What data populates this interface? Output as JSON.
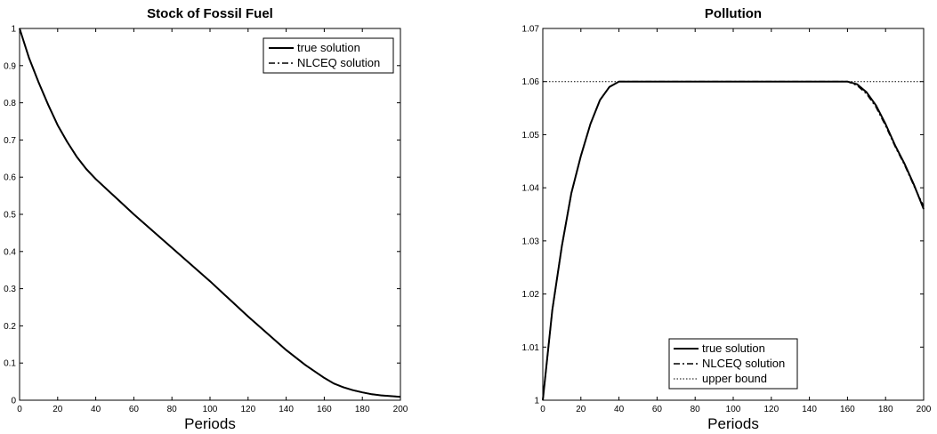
{
  "chart_data": [
    {
      "type": "line",
      "title": "Stock of Fossil Fuel",
      "xlabel": "Periods",
      "ylabel": "",
      "xlim": [
        0,
        200
      ],
      "ylim": [
        0,
        1
      ],
      "xticks": [
        0,
        20,
        40,
        60,
        80,
        100,
        120,
        140,
        160,
        180,
        200
      ],
      "yticks": [
        0,
        0.1,
        0.2,
        0.3,
        0.4,
        0.5,
        0.6,
        0.7,
        0.8,
        0.9,
        1
      ],
      "ytick_labels": [
        "0",
        "0.1",
        "0.2",
        "0.3",
        "0.4",
        "0.5",
        "0.6",
        "0.7",
        "0.8",
        "0.9",
        "1"
      ],
      "legend_position": "top-right",
      "grid": false,
      "series": [
        {
          "name": "true solution",
          "style": "solid",
          "x": [
            0,
            5,
            10,
            15,
            20,
            25,
            30,
            35,
            40,
            60,
            80,
            100,
            120,
            140,
            150,
            160,
            165,
            170,
            175,
            180,
            185,
            190,
            195,
            200
          ],
          "y": [
            1.0,
            0.92,
            0.855,
            0.795,
            0.74,
            0.695,
            0.655,
            0.622,
            0.595,
            0.5,
            0.41,
            0.32,
            0.225,
            0.135,
            0.095,
            0.06,
            0.045,
            0.035,
            0.027,
            0.021,
            0.016,
            0.013,
            0.011,
            0.009
          ]
        },
        {
          "name": "NLCEQ solution",
          "style": "dashdot",
          "x": [
            0,
            5,
            10,
            15,
            20,
            25,
            30,
            35,
            40,
            60,
            80,
            100,
            120,
            140,
            150,
            160,
            165,
            170,
            175,
            180,
            185,
            190,
            195,
            200
          ],
          "y": [
            1.0,
            0.92,
            0.855,
            0.795,
            0.74,
            0.695,
            0.655,
            0.622,
            0.595,
            0.5,
            0.41,
            0.32,
            0.225,
            0.135,
            0.095,
            0.06,
            0.045,
            0.035,
            0.027,
            0.021,
            0.016,
            0.013,
            0.011,
            0.009
          ]
        }
      ]
    },
    {
      "type": "line",
      "title": "Pollution",
      "xlabel": "Periods",
      "ylabel": "",
      "xlim": [
        0,
        200
      ],
      "ylim": [
        1,
        1.07
      ],
      "xticks": [
        0,
        20,
        40,
        60,
        80,
        100,
        120,
        140,
        160,
        180,
        200
      ],
      "yticks": [
        1,
        1.01,
        1.02,
        1.03,
        1.04,
        1.05,
        1.06,
        1.07
      ],
      "ytick_labels": [
        "1",
        "1.01",
        "1.02",
        "1.03",
        "1.04",
        "1.05",
        "1.06",
        "1.07"
      ],
      "legend_position": "bottom-center",
      "grid": false,
      "series": [
        {
          "name": "true solution",
          "style": "solid",
          "x": [
            0,
            5,
            10,
            15,
            20,
            25,
            30,
            35,
            40,
            160,
            165,
            170,
            175,
            180,
            185,
            190,
            195,
            200
          ],
          "y": [
            1.0,
            1.017,
            1.029,
            1.039,
            1.046,
            1.052,
            1.0565,
            1.059,
            1.06,
            1.06,
            1.0595,
            1.058,
            1.0555,
            1.052,
            1.048,
            1.0445,
            1.0405,
            1.036
          ]
        },
        {
          "name": "NLCEQ solution",
          "style": "dashdot",
          "x": [
            0,
            5,
            10,
            15,
            20,
            25,
            30,
            35,
            40,
            160,
            165,
            170,
            175,
            180,
            185,
            190,
            195,
            200
          ],
          "y": [
            1.0,
            1.017,
            1.029,
            1.039,
            1.046,
            1.052,
            1.0565,
            1.059,
            1.06,
            1.06,
            1.0593,
            1.0577,
            1.0552,
            1.0517,
            1.0478,
            1.0443,
            1.0403,
            1.0365
          ]
        },
        {
          "name": "upper bound",
          "style": "dotted",
          "x": [
            0,
            200
          ],
          "y": [
            1.06,
            1.06
          ]
        }
      ]
    }
  ]
}
